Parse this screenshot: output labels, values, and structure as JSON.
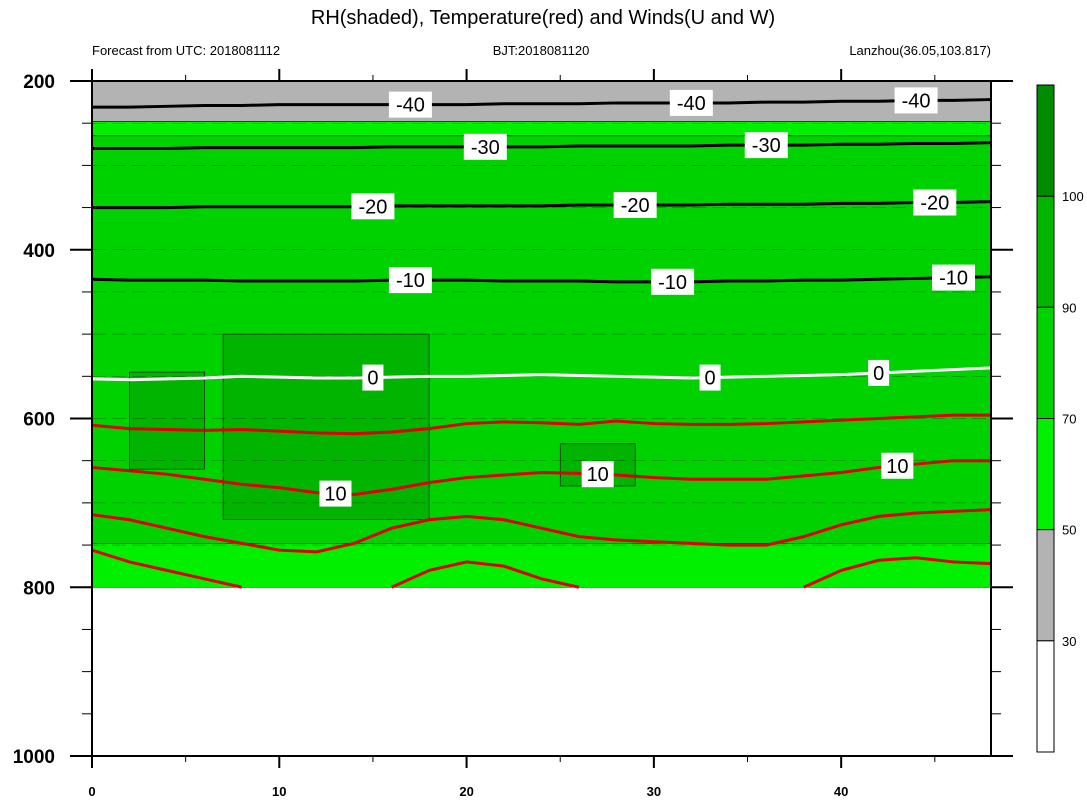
{
  "chart_data": {
    "type": "heatmap",
    "title": "RH(shaded), Temperature(red) and Winds(U and W)",
    "subtitle_left": "Forecast from UTC: 2018081112",
    "subtitle_center": "BJT:2018081120",
    "subtitle_right": "Lanzhou(36.05,103.817)",
    "xlim": [
      0,
      48
    ],
    "ylim": [
      1000,
      200
    ],
    "x_ticks": [
      0,
      10,
      20,
      30,
      40
    ],
    "y_ticks": [
      200,
      400,
      600,
      800,
      1000
    ],
    "colorbar": {
      "levels": [
        30,
        50,
        70,
        90,
        100
      ],
      "colors": [
        "#ffffff",
        "#b3b3b3",
        "#00f000",
        "#00d200",
        "#00b400",
        "#008c00"
      ]
    },
    "rh_regions": {
      "surface_top_pressure": [
        803,
        805,
        806,
        809,
        812,
        815,
        812,
        808,
        805,
        808,
        813,
        818,
        820,
        818,
        814,
        810,
        806,
        804,
        805,
        806,
        804,
        803,
        804,
        806,
        805
      ],
      "regions": [
        {
          "rh": 40,
          "x": [
            0,
            48
          ],
          "p": [
            200,
            248
          ]
        },
        {
          "rh": 60,
          "x": [
            0,
            48
          ],
          "p": [
            248,
            800
          ]
        },
        {
          "rh": 80,
          "x": [
            0,
            48
          ],
          "p": [
            265,
            748
          ]
        },
        {
          "rh": 95,
          "x": [
            2,
            6
          ],
          "p": [
            545,
            660
          ]
        },
        {
          "rh": 95,
          "x": [
            7,
            18
          ],
          "p": [
            500,
            720
          ]
        },
        {
          "rh": 95,
          "x": [
            25,
            29
          ],
          "p": [
            630,
            680
          ]
        }
      ]
    },
    "temperature_contours": [
      {
        "level": -40,
        "color": "#000000",
        "label": "-40",
        "label_x": [
          17,
          32,
          44
        ],
        "p": [
          231,
          231,
          230,
          229,
          229,
          228,
          228,
          228,
          228,
          228,
          228,
          227,
          227,
          227,
          226,
          226,
          226,
          226,
          225,
          225,
          224,
          224,
          223,
          223,
          222
        ]
      },
      {
        "level": -30,
        "color": "#000000",
        "label": "-30",
        "label_x": [
          21,
          36
        ],
        "p": [
          280,
          280,
          280,
          279,
          279,
          279,
          279,
          279,
          278,
          278,
          278,
          278,
          278,
          277,
          277,
          277,
          277,
          276,
          276,
          276,
          275,
          275,
          274,
          274,
          273
        ]
      },
      {
        "level": -20,
        "color": "#000000",
        "label": "-20",
        "label_x": [
          15,
          29,
          45
        ],
        "p": [
          350,
          350,
          350,
          349,
          349,
          349,
          349,
          349,
          348,
          348,
          348,
          348,
          348,
          347,
          347,
          347,
          347,
          346,
          346,
          346,
          345,
          345,
          344,
          344,
          343
        ]
      },
      {
        "level": -10,
        "color": "#000000",
        "label": "-10",
        "label_x": [
          17,
          31,
          46
        ],
        "p": [
          435,
          436,
          436,
          436,
          437,
          437,
          437,
          437,
          436,
          436,
          436,
          437,
          437,
          437,
          438,
          438,
          438,
          437,
          437,
          436,
          436,
          435,
          434,
          433,
          432
        ]
      },
      {
        "level": 0,
        "color": "#ffffff",
        "label": "0",
        "label_x": [
          15,
          33,
          42
        ],
        "p": [
          553,
          554,
          553,
          552,
          550,
          551,
          552,
          552,
          551,
          550,
          550,
          549,
          548,
          549,
          550,
          551,
          552,
          551,
          550,
          549,
          548,
          546,
          544,
          542,
          540
        ]
      },
      {
        "level": 5,
        "color": "#e00000",
        "label": "",
        "label_x": [],
        "p": [
          608,
          612,
          613,
          614,
          613,
          615,
          617,
          618,
          616,
          612,
          606,
          604,
          605,
          607,
          603,
          606,
          607,
          607,
          606,
          604,
          602,
          600,
          598,
          596,
          596
        ]
      },
      {
        "level": 10,
        "color": "#e00000",
        "label": "10",
        "label_x": [
          13,
          27,
          43
        ],
        "p": [
          658,
          662,
          666,
          672,
          678,
          682,
          688,
          690,
          684,
          676,
          670,
          667,
          664,
          665,
          667,
          670,
          672,
          672,
          672,
          668,
          664,
          658,
          654,
          650,
          650
        ]
      },
      {
        "level": 15,
        "color": "#e00000",
        "label": "",
        "label_x": [],
        "p": [
          714,
          720,
          730,
          740,
          748,
          756,
          758,
          748,
          730,
          720,
          716,
          720,
          730,
          740,
          744,
          746,
          748,
          750,
          750,
          740,
          726,
          716,
          712,
          710,
          708
        ]
      },
      {
        "level": 20,
        "color": "#e00000",
        "label": "",
        "label_x": [],
        "p": [
          756,
          770,
          780,
          790,
          800,
          null,
          null,
          null,
          800,
          780,
          770,
          775,
          790,
          800,
          null,
          null,
          null,
          null,
          null,
          800,
          780,
          768,
          765,
          770,
          772
        ]
      }
    ],
    "wind_barb_rows": [
      250,
      300,
      350,
      400,
      450,
      500,
      550,
      600,
      650,
      700,
      750,
      800
    ]
  }
}
